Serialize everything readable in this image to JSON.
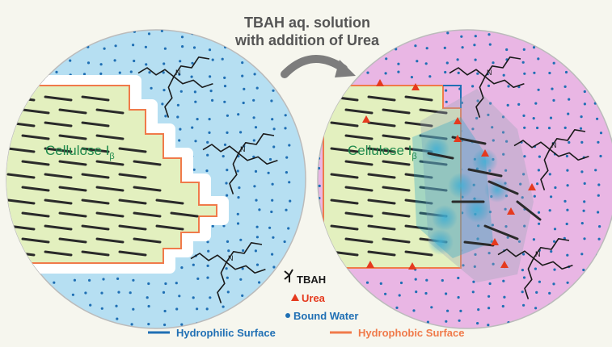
{
  "header": {
    "line1": "TBAH aq. solution",
    "line2": "with addition of Urea"
  },
  "panels": [
    {
      "cellulose_label": "Cellulose I",
      "cellulose_subscript": "β"
    },
    {
      "cellulose_label": "Cellulose I",
      "cellulose_subscript": "β"
    }
  ],
  "legend": {
    "tbah_label": "TBAH",
    "urea_label": "Urea",
    "water_label": "Bound Water",
    "hydrophilic_label": "Hydrophilic Surface",
    "hydrophobic_label": "Hydrophobic Surface"
  },
  "colors": {
    "background": "#f6f6ee",
    "solution_left": "#b6dff2",
    "solution_right": "#e9b6e4",
    "cellulose": "#e3f0bf",
    "hydrophilic": "#1f6fb4",
    "hydrophobic": "#f07a4a",
    "urea": "#e53a1e",
    "water_dot": "#1f6fb4",
    "arrow": "#7d7d7d",
    "label_green": "#1f8a4c",
    "tbah_stroke": "#1a1a1a"
  },
  "icons": {
    "tbah": "tbah-molecule-icon",
    "urea": "urea-triangle-icon",
    "water": "water-dot-icon",
    "arrow": "curved-arrow-icon"
  }
}
